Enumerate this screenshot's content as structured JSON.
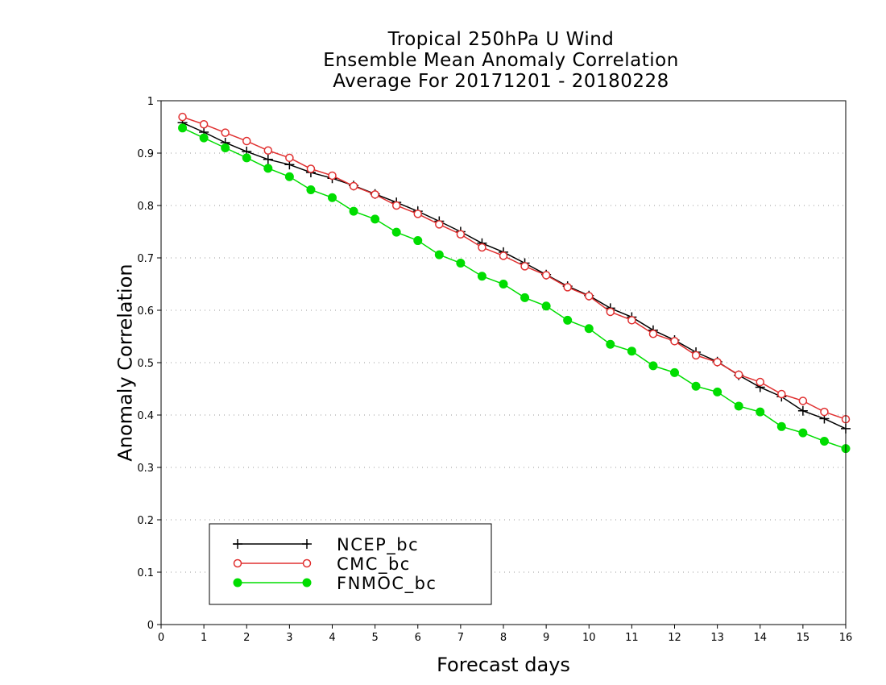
{
  "chart_data": {
    "type": "line",
    "title": [
      "Tropical 250hPa U Wind",
      "Ensemble Mean Anomaly Correlation",
      "Average For 20171201 - 20180228"
    ],
    "xlabel": "Forecast days",
    "ylabel": "Anomaly Correlation",
    "xlim": [
      0,
      16
    ],
    "ylim": [
      0,
      1
    ],
    "xticks": [
      "0",
      "1",
      "2",
      "3",
      "4",
      "5",
      "6",
      "7",
      "8",
      "9",
      "10",
      "11",
      "12",
      "13",
      "14",
      "15",
      "16"
    ],
    "yticks": [
      "0",
      "0.1",
      "0.2",
      "0.3",
      "0.4",
      "0.5",
      "0.6",
      "0.7",
      "0.8",
      "0.9",
      "1"
    ],
    "grid": "horizontal dotted",
    "legend_position": "bottom-left",
    "x": [
      0.5,
      1,
      1.5,
      2,
      2.5,
      3,
      3.5,
      4,
      4.5,
      5,
      5.5,
      6,
      6.5,
      7,
      7.5,
      8,
      8.5,
      9,
      9.5,
      10,
      10.5,
      11,
      11.5,
      12,
      12.5,
      13,
      13.5,
      14,
      14.5,
      15,
      15.5,
      16
    ],
    "series": [
      {
        "name": "NCEP_bc",
        "color": "#000000",
        "marker": "plus",
        "values": [
          0.958,
          0.94,
          0.92,
          0.903,
          0.888,
          0.878,
          0.863,
          0.852,
          0.838,
          0.822,
          0.806,
          0.789,
          0.77,
          0.75,
          0.728,
          0.711,
          0.69,
          0.668,
          0.646,
          0.628,
          0.604,
          0.587,
          0.562,
          0.543,
          0.52,
          0.502,
          0.476,
          0.453,
          0.435,
          0.408,
          0.393,
          0.374
        ]
      },
      {
        "name": "CMC_bc",
        "color": "#e03030",
        "marker": "open-circle",
        "values": [
          0.969,
          0.955,
          0.939,
          0.923,
          0.905,
          0.891,
          0.87,
          0.857,
          0.837,
          0.821,
          0.8,
          0.784,
          0.764,
          0.745,
          0.72,
          0.704,
          0.684,
          0.667,
          0.644,
          0.627,
          0.597,
          0.581,
          0.555,
          0.541,
          0.514,
          0.501,
          0.477,
          0.463,
          0.44,
          0.427,
          0.406,
          0.392
        ]
      },
      {
        "name": "FNMOC_bc",
        "color": "#00dd00",
        "marker": "filled-circle",
        "values": [
          0.948,
          0.929,
          0.91,
          0.891,
          0.871,
          0.855,
          0.83,
          0.815,
          0.789,
          0.774,
          0.749,
          0.733,
          0.706,
          0.69,
          0.665,
          0.65,
          0.624,
          0.608,
          0.581,
          0.565,
          0.535,
          0.522,
          0.494,
          0.481,
          0.455,
          0.444,
          0.417,
          0.406,
          0.378,
          0.366,
          0.35,
          0.336
        ]
      }
    ]
  }
}
